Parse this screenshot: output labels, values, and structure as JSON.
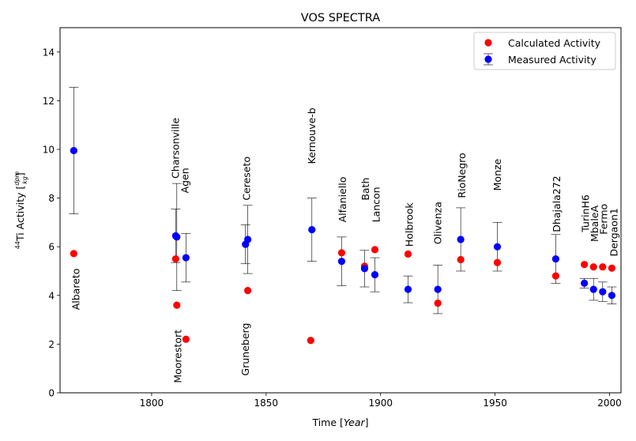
{
  "chart_data": {
    "type": "scatter",
    "title": "VOS SPECTRA",
    "xlabel": {
      "prefix": "Time [",
      "italic": "Year",
      "suffix": "]"
    },
    "ylabel": {
      "sup": "44",
      "text": "Ti Activity [",
      "frac_num": "dpm",
      "frac_den": "kg",
      "suffix": "]"
    },
    "xlim": [
      1760,
      2005
    ],
    "ylim": [
      0,
      15
    ],
    "xticks": [
      1800,
      1850,
      1900,
      1950,
      2000
    ],
    "yticks": [
      0,
      2,
      4,
      6,
      8,
      10,
      12,
      14
    ],
    "legend": {
      "position": "top-right",
      "entries": [
        {
          "label": "Calculated Activity",
          "color": "#ff0000"
        },
        {
          "label": "Measured Activity",
          "color": "#0000ff"
        }
      ]
    },
    "calculated": [
      {
        "x": 1766,
        "y": 5.72
      },
      {
        "x": 1810.5,
        "y": 5.5
      },
      {
        "x": 1811,
        "y": 3.6
      },
      {
        "x": 1815,
        "y": 2.2
      },
      {
        "x": 1842,
        "y": 4.2
      },
      {
        "x": 1869.5,
        "y": 2.15
      },
      {
        "x": 1883,
        "y": 5.75
      },
      {
        "x": 1893,
        "y": 5.2
      },
      {
        "x": 1897.5,
        "y": 5.88
      },
      {
        "x": 1912,
        "y": 5.7
      },
      {
        "x": 1925,
        "y": 3.68
      },
      {
        "x": 1935,
        "y": 5.47
      },
      {
        "x": 1951,
        "y": 5.35
      },
      {
        "x": 1976.5,
        "y": 4.8
      },
      {
        "x": 1989,
        "y": 5.27
      },
      {
        "x": 1993,
        "y": 5.17
      },
      {
        "x": 1997,
        "y": 5.17
      },
      {
        "x": 2001,
        "y": 5.12
      }
    ],
    "measured": [
      {
        "x": 1766,
        "y": 9.95,
        "err": 2.6
      },
      {
        "x": 1810.5,
        "y": 6.45,
        "err": 1.1
      },
      {
        "x": 1811,
        "y": 6.4,
        "err": 2.2
      },
      {
        "x": 1815,
        "y": 5.55,
        "err": 1.0
      },
      {
        "x": 1841,
        "y": 6.1,
        "err": 0.8
      },
      {
        "x": 1842,
        "y": 6.3,
        "err": 1.4
      },
      {
        "x": 1870,
        "y": 6.7,
        "err": 1.3
      },
      {
        "x": 1883,
        "y": 5.4,
        "err": 1.0
      },
      {
        "x": 1893,
        "y": 5.1,
        "err": 0.75
      },
      {
        "x": 1897.5,
        "y": 4.85,
        "err": 0.7
      },
      {
        "x": 1912,
        "y": 4.25,
        "err": 0.55
      },
      {
        "x": 1925,
        "y": 4.25,
        "err": 1.0
      },
      {
        "x": 1935,
        "y": 6.3,
        "err": 1.3
      },
      {
        "x": 1951,
        "y": 6.0,
        "err": 1.0
      },
      {
        "x": 1976.5,
        "y": 5.5,
        "err": 1.0
      },
      {
        "x": 1989,
        "y": 4.5,
        "err": 0.2
      },
      {
        "x": 1993,
        "y": 4.25,
        "err": 0.45
      },
      {
        "x": 1997,
        "y": 4.15,
        "err": 0.4
      },
      {
        "x": 2001,
        "y": 4.0,
        "err": 0.35
      }
    ],
    "annotations": [
      {
        "text": "Albareto",
        "x": 1768.5,
        "y": 3.4
      },
      {
        "text": "Charsonville",
        "x": 1812,
        "y": 8.8
      },
      {
        "text": "Agen",
        "x": 1816,
        "y": 8.2
      },
      {
        "text": "Moorestort",
        "x": 1813,
        "y": 0.4
      },
      {
        "text": "Cereseto",
        "x": 1843,
        "y": 7.9
      },
      {
        "text": "Gruneberg",
        "x": 1842.5,
        "y": 0.7
      },
      {
        "text": "Kernouve-b",
        "x": 1871.5,
        "y": 9.4
      },
      {
        "text": "Alfaniello",
        "x": 1885,
        "y": 7.0
      },
      {
        "text": "Bath",
        "x": 1895,
        "y": 7.9
      },
      {
        "text": "Lancon",
        "x": 1899.5,
        "y": 7.0
      },
      {
        "text": "Holbrook",
        "x": 1914,
        "y": 6.0
      },
      {
        "text": "Olivenza",
        "x": 1926.5,
        "y": 6.1
      },
      {
        "text": "RioNegro",
        "x": 1937,
        "y": 8.0
      },
      {
        "text": "Monze",
        "x": 1952.5,
        "y": 8.3
      },
      {
        "text": "Dhajala272",
        "x": 1978.5,
        "y": 6.6
      },
      {
        "text": "TurinH6",
        "x": 1991,
        "y": 6.6
      },
      {
        "text": "MbaleA",
        "x": 1995,
        "y": 6.2
      },
      {
        "text": "Fermo",
        "x": 1999,
        "y": 6.5
      },
      {
        "text": "Dergaon1",
        "x": 2003.5,
        "y": 5.6
      }
    ]
  }
}
